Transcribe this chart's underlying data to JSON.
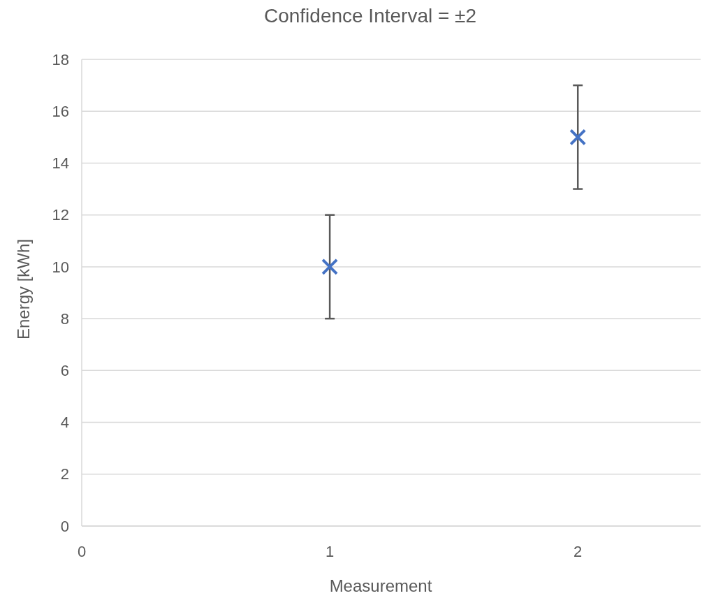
{
  "chart_data": {
    "type": "scatter",
    "title": "Confidence Interval = ±2",
    "xlabel": "Measurement",
    "ylabel": "Energy [kWh]",
    "x": [
      1,
      2
    ],
    "values": [
      10,
      15
    ],
    "errors": [
      2,
      2
    ],
    "color": "#4472c4",
    "marker": "cross",
    "xlim": [
      0,
      2.5
    ],
    "xticks": [
      0,
      1,
      2
    ],
    "ylim": [
      0,
      18
    ],
    "yticks": [
      0,
      2,
      4,
      6,
      8,
      10,
      12,
      14,
      16,
      18
    ],
    "grid": "y"
  }
}
